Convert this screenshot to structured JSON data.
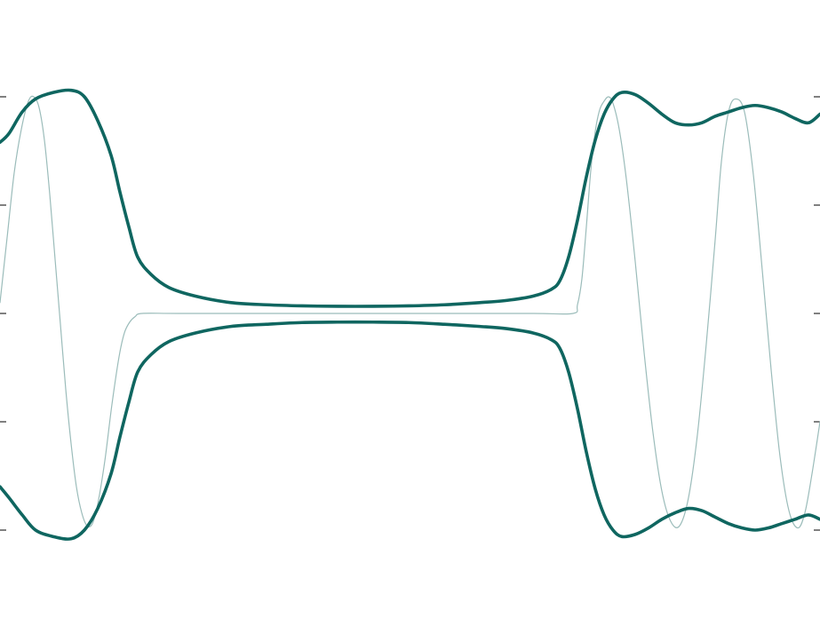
{
  "chart_data": {
    "type": "line",
    "title": "",
    "xlabel": "",
    "ylabel": "",
    "xlim": [
      0,
      923
    ],
    "ylim": [
      -1,
      1
    ],
    "yticks": [
      -1,
      -0.5,
      0,
      0.5,
      1
    ],
    "grid": false,
    "legend": "none",
    "series": [
      {
        "role": "envelope-upper",
        "color": "#0f6660",
        "x": [
          0,
          10,
          25,
          40,
          60,
          80,
          95,
          110,
          125,
          135,
          145,
          155,
          170,
          190,
          220,
          260,
          300,
          340,
          380,
          420,
          460,
          500,
          540,
          570,
          600,
          620,
          630,
          640,
          650,
          660,
          670,
          680,
          690,
          700,
          715,
          730,
          745,
          760,
          775,
          790,
          805,
          820,
          835,
          850,
          865,
          880,
          895,
          910,
          923
        ],
        "y": [
          0.79,
          0.83,
          0.93,
          0.99,
          1.02,
          1.03,
          1.0,
          0.89,
          0.73,
          0.56,
          0.4,
          0.26,
          0.18,
          0.12,
          0.08,
          0.05,
          0.04,
          0.035,
          0.033,
          0.033,
          0.035,
          0.04,
          0.05,
          0.06,
          0.08,
          0.11,
          0.15,
          0.26,
          0.43,
          0.63,
          0.8,
          0.92,
          0.99,
          1.02,
          1.01,
          0.97,
          0.92,
          0.88,
          0.87,
          0.88,
          0.91,
          0.93,
          0.95,
          0.96,
          0.95,
          0.93,
          0.9,
          0.88,
          0.92
        ]
      },
      {
        "role": "envelope-lower",
        "color": "#0f6660",
        "x": [
          0,
          10,
          25,
          40,
          60,
          80,
          95,
          110,
          125,
          135,
          145,
          155,
          170,
          190,
          220,
          260,
          300,
          340,
          380,
          420,
          460,
          500,
          540,
          570,
          600,
          620,
          630,
          640,
          650,
          660,
          670,
          680,
          690,
          700,
          715,
          730,
          745,
          760,
          775,
          790,
          805,
          820,
          835,
          850,
          865,
          880,
          895,
          910,
          923
        ],
        "y": [
          -0.8,
          -0.85,
          -0.93,
          -1.0,
          -1.03,
          -1.04,
          -1.0,
          -0.9,
          -0.74,
          -0.57,
          -0.41,
          -0.27,
          -0.19,
          -0.13,
          -0.09,
          -0.06,
          -0.05,
          -0.042,
          -0.04,
          -0.04,
          -0.042,
          -0.05,
          -0.06,
          -0.07,
          -0.09,
          -0.12,
          -0.16,
          -0.27,
          -0.44,
          -0.64,
          -0.81,
          -0.93,
          -1.0,
          -1.03,
          -1.02,
          -0.99,
          -0.95,
          -0.92,
          -0.9,
          -0.91,
          -0.94,
          -0.97,
          -0.99,
          -1.0,
          -0.99,
          -0.97,
          -0.95,
          -0.93,
          -0.95
        ]
      },
      {
        "role": "signal",
        "color": "#9bbcba",
        "x": [
          0,
          8,
          16,
          24,
          32,
          38,
          44,
          50,
          56,
          62,
          68,
          74,
          80,
          86,
          92,
          98,
          104,
          110,
          118,
          126,
          134,
          140,
          146,
          152,
          160,
          200,
          300,
          400,
          500,
          600,
          645,
          650,
          655,
          660,
          665,
          670,
          675,
          680,
          685,
          690,
          697,
          705,
          715,
          725,
          735,
          745,
          755,
          765,
          775,
          785,
          795,
          805,
          812,
          820,
          828,
          838,
          848,
          858,
          868,
          878,
          888,
          898,
          906,
          914,
          923
        ],
        "y": [
          0.05,
          0.35,
          0.65,
          0.85,
          0.98,
          1.0,
          0.95,
          0.8,
          0.55,
          0.25,
          -0.05,
          -0.35,
          -0.6,
          -0.8,
          -0.92,
          -0.98,
          -0.97,
          -0.88,
          -0.68,
          -0.42,
          -0.2,
          -0.09,
          -0.04,
          -0.015,
          0,
          0,
          0,
          0,
          0,
          0,
          0,
          0.04,
          0.16,
          0.4,
          0.66,
          0.84,
          0.94,
          0.98,
          1.0,
          0.97,
          0.85,
          0.62,
          0.24,
          -0.18,
          -0.55,
          -0.82,
          -0.96,
          -0.98,
          -0.85,
          -0.56,
          -0.14,
          0.34,
          0.7,
          0.93,
          0.99,
          0.93,
          0.64,
          0.2,
          -0.26,
          -0.66,
          -0.91,
          -0.99,
          -0.92,
          -0.74,
          -0.5
        ]
      }
    ]
  }
}
